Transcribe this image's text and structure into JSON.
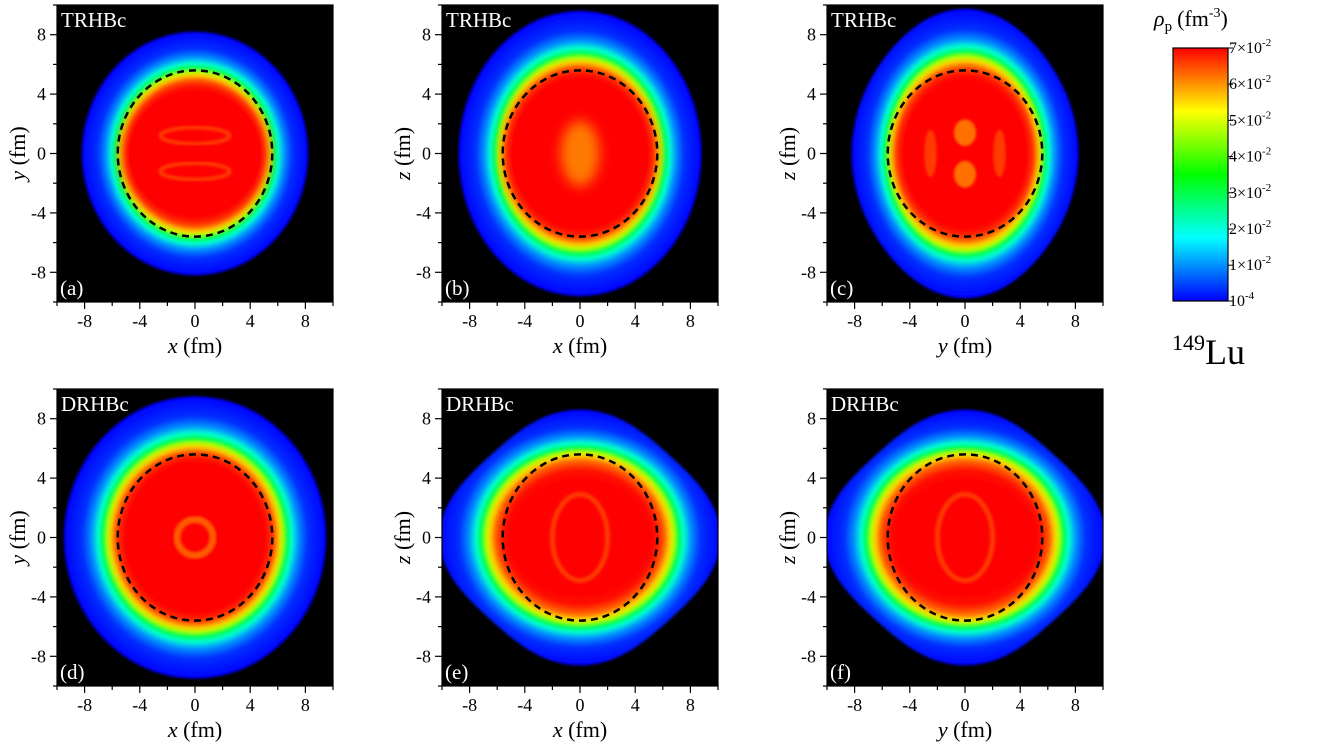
{
  "chart_data": {
    "type": "heatmap",
    "nucleus": {
      "mass_number": "149",
      "symbol": "Lu"
    },
    "colorbar": {
      "title_symbol": "ρ",
      "title_sub": "p",
      "title_unit": "(fm",
      "title_unit_exp": "-3",
      "title_unit_close": ")",
      "scale_range": [
        0.0001,
        0.07
      ],
      "ticks": [
        {
          "mant": "7×10",
          "exp": "-2",
          "value": 0.07
        },
        {
          "mant": "6×10",
          "exp": "-2",
          "value": 0.06
        },
        {
          "mant": "5×10",
          "exp": "-2",
          "value": 0.05
        },
        {
          "mant": "4×10",
          "exp": "-2",
          "value": 0.04
        },
        {
          "mant": "3×10",
          "exp": "-2",
          "value": 0.03
        },
        {
          "mant": "2×10",
          "exp": "-2",
          "value": 0.02
        },
        {
          "mant": "1×10",
          "exp": "-2",
          "value": 0.01
        },
        {
          "mant": "10",
          "exp": "-4",
          "value": 0.0001
        }
      ],
      "colormap": [
        "#0000ff",
        "#0080ff",
        "#00ffff",
        "#00ff80",
        "#00ff00",
        "#80ff00",
        "#ffff00",
        "#ff8000",
        "#ff0000"
      ]
    },
    "axis_range": [
      -10,
      10
    ],
    "ticks": [
      -8,
      -4,
      0,
      4,
      8
    ],
    "tick_labels": [
      "-8",
      "-4",
      "0",
      "4",
      "8"
    ],
    "dashed_circle_radius_fm": 5.6,
    "panels": [
      {
        "tag": "(a)",
        "model": "TRHBc",
        "xvar": "x",
        "yvar": "y",
        "unit": " (fm)",
        "outer_a": 8.2,
        "outer_b": 8.2,
        "core_a": 5.2,
        "core_b": 4.6
      },
      {
        "tag": "(b)",
        "model": "TRHBc",
        "xvar": "x",
        "yvar": "z",
        "unit": " (fm)",
        "outer_a": 8.8,
        "outer_b": 9.6,
        "core_a": 5.4,
        "core_b": 5.5
      },
      {
        "tag": "(c)",
        "model": "TRHBc",
        "xvar": "y",
        "yvar": "z",
        "unit": " (fm)",
        "outer_a": 8.1,
        "outer_b": 9.6,
        "core_a": 4.9,
        "core_b": 5.4
      },
      {
        "tag": "(d)",
        "model": "DRHBc",
        "xvar": "x",
        "yvar": "y",
        "unit": " (fm)",
        "outer_a": 9.5,
        "outer_b": 9.5,
        "core_a": 5.5,
        "core_b": 5.5
      },
      {
        "tag": "(e)",
        "model": "DRHBc",
        "xvar": "x",
        "yvar": "z",
        "unit": " (fm)",
        "outer_a": 9.7,
        "outer_b": 8.2,
        "core_a": 5.6,
        "core_b": 4.3
      },
      {
        "tag": "(f)",
        "model": "DRHBc",
        "xvar": "y",
        "yvar": "z",
        "unit": " (fm)",
        "outer_a": 9.7,
        "outer_b": 8.2,
        "core_a": 5.6,
        "core_b": 4.3
      }
    ]
  }
}
